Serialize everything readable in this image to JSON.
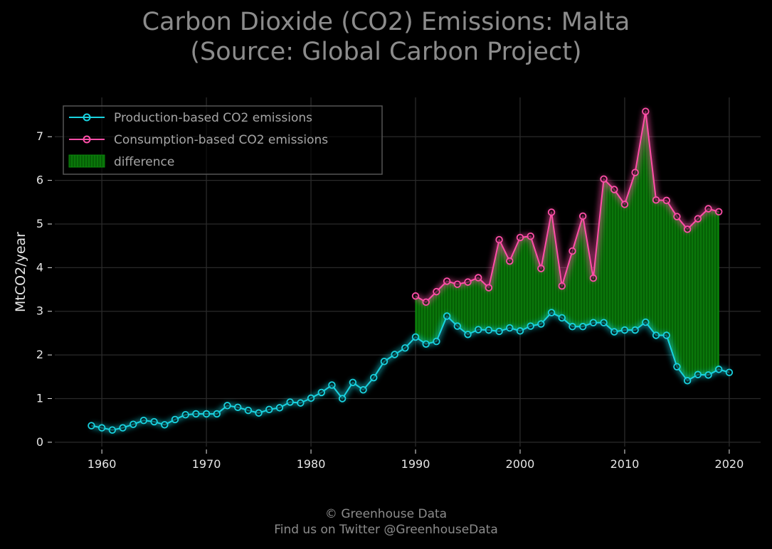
{
  "title_line1": "Carbon Dioxide (CO2) Emissions: Malta",
  "title_line2": "(Source: Global Carbon Project)",
  "footer_line1": "© Greenhouse Data",
  "footer_line2": "Find us on Twitter @GreenhouseData",
  "colors": {
    "production": "#19d3e0",
    "consumption": "#ff4fa8",
    "difference": "#0a8a0a",
    "grid": "#2a2a2a",
    "background": "#000000"
  },
  "chart_data": {
    "type": "line",
    "ylabel": "MtCO2/year",
    "xlabel": "",
    "xlim": [
      1955.5,
      2023
    ],
    "ylim": [
      -0.1,
      7.9
    ],
    "xticks": [
      1960,
      1970,
      1980,
      1990,
      2000,
      2010,
      2020
    ],
    "yticks": [
      0,
      1,
      2,
      3,
      4,
      5,
      6,
      7
    ],
    "grid": true,
    "legend_position": "top-left",
    "legend": [
      "Production-based CO2 emissions",
      "Consumption-based CO2 emissions",
      "difference"
    ],
    "series": [
      {
        "name": "Production-based CO2 emissions",
        "x": [
          1959,
          1960,
          1961,
          1962,
          1963,
          1964,
          1965,
          1966,
          1967,
          1968,
          1969,
          1970,
          1971,
          1972,
          1973,
          1974,
          1975,
          1976,
          1977,
          1978,
          1979,
          1980,
          1981,
          1982,
          1983,
          1984,
          1985,
          1986,
          1987,
          1988,
          1989,
          1990,
          1991,
          1992,
          1993,
          1994,
          1995,
          1996,
          1997,
          1998,
          1999,
          2000,
          2001,
          2002,
          2003,
          2004,
          2005,
          2006,
          2007,
          2008,
          2009,
          2010,
          2011,
          2012,
          2013,
          2014,
          2015,
          2016,
          2017,
          2018,
          2019,
          2020
        ],
        "values": [
          0.38,
          0.33,
          0.28,
          0.33,
          0.41,
          0.5,
          0.47,
          0.4,
          0.52,
          0.63,
          0.65,
          0.65,
          0.65,
          0.84,
          0.8,
          0.73,
          0.67,
          0.75,
          0.79,
          0.92,
          0.9,
          1.01,
          1.14,
          1.31,
          1.0,
          1.37,
          1.2,
          1.48,
          1.85,
          2.01,
          2.16,
          2.41,
          2.25,
          2.31,
          2.89,
          2.66,
          2.47,
          2.58,
          2.57,
          2.54,
          2.62,
          2.55,
          2.66,
          2.71,
          2.97,
          2.85,
          2.65,
          2.65,
          2.74,
          2.74,
          2.53,
          2.57,
          2.57,
          2.75,
          2.45,
          2.45,
          1.73,
          1.41,
          1.55,
          1.54,
          1.67,
          1.6
        ]
      },
      {
        "name": "Consumption-based CO2 emissions",
        "x": [
          1990,
          1991,
          1992,
          1993,
          1994,
          1995,
          1996,
          1997,
          1998,
          1999,
          2000,
          2001,
          2002,
          2003,
          2004,
          2005,
          2006,
          2007,
          2008,
          2009,
          2010,
          2011,
          2012,
          2013,
          2014,
          2015,
          2016,
          2017,
          2018,
          2019
        ],
        "values": [
          3.35,
          3.21,
          3.45,
          3.69,
          3.62,
          3.67,
          3.77,
          3.54,
          4.64,
          4.15,
          4.69,
          4.72,
          3.98,
          5.27,
          3.58,
          4.38,
          5.18,
          3.76,
          6.03,
          5.79,
          5.45,
          6.18,
          7.58,
          5.55,
          5.54,
          5.17,
          4.88,
          5.12,
          5.35,
          5.28
        ]
      }
    ]
  }
}
